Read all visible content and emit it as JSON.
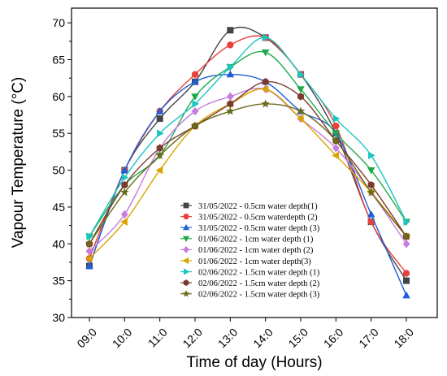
{
  "chart_data": {
    "type": "line",
    "title": "",
    "xlabel": "Time of day (Hours)",
    "ylabel": "Vapour Temperature (°C)",
    "categories": [
      "09:0",
      "10:0",
      "11:0",
      "12:0",
      "13:0",
      "14:0",
      "15:0",
      "16:0",
      "17:0",
      "18:0"
    ],
    "ylim": [
      30,
      72
    ],
    "yticks": [
      30,
      35,
      40,
      45,
      50,
      55,
      60,
      65,
      70
    ],
    "grid": false,
    "legend_position": "inside-lower-center",
    "series": [
      {
        "name": "31/05/2022 - 0.5cm water depth(1)",
        "color": "#444444",
        "marker": "square",
        "values": [
          37,
          50,
          57,
          62,
          69,
          68,
          63,
          55,
          43,
          35
        ]
      },
      {
        "name": "31/05/2022 - 0.5cm waterdepth (2)",
        "color": "#e8423a",
        "marker": "circle",
        "values": [
          38,
          50,
          58,
          63,
          67,
          68,
          63,
          56,
          43,
          36
        ]
      },
      {
        "name": "31/05/2022 - 0.5cm water depth (3)",
        "color": "#1f5fd8",
        "marker": "triangle-up",
        "values": [
          37,
          50,
          58,
          62,
          63,
          62,
          58,
          55,
          44,
          33
        ]
      },
      {
        "name": "01/06/2022 - 1cm water depth (1)",
        "color": "#1eaa4a",
        "marker": "triangle-down",
        "values": [
          41,
          48,
          52,
          60,
          64,
          66,
          61,
          55,
          50,
          43
        ]
      },
      {
        "name": "01/06/2022 - 1cm water depth (2)",
        "color": "#c77ddd",
        "marker": "diamond",
        "values": [
          39,
          44,
          53,
          58,
          60,
          61,
          57,
          53,
          47,
          40
        ]
      },
      {
        "name": "01/06/2022 - 1cm water depth(3)",
        "color": "#d9a400",
        "marker": "triangle-left",
        "values": [
          38,
          43,
          50,
          56,
          59,
          61,
          57,
          52,
          47,
          41
        ]
      },
      {
        "name": "02/06/2022 - 1.5cm water depth (1)",
        "color": "#1cc5c0",
        "marker": "triangle-right",
        "values": [
          41,
          49,
          55,
          59,
          64,
          68,
          63,
          57,
          52,
          43
        ]
      },
      {
        "name": "02/06/2022 - 1.5cm water depth (2)",
        "color": "#7a3b2e",
        "marker": "hexagon",
        "values": [
          40,
          48,
          53,
          56,
          59,
          62,
          60,
          54,
          48,
          41
        ]
      },
      {
        "name": "02/06/2022 - 1.5cm water depth (3)",
        "color": "#6b6b1a",
        "marker": "star",
        "values": [
          40,
          47,
          52,
          56,
          58,
          59,
          58,
          54,
          47,
          41
        ]
      }
    ]
  }
}
